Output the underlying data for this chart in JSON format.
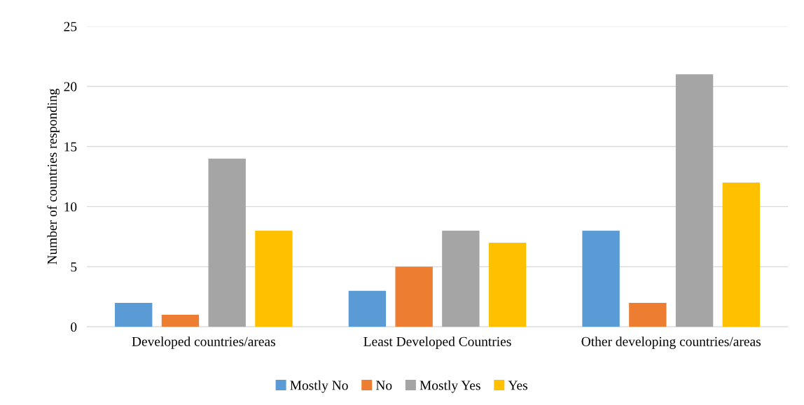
{
  "chart_data": {
    "type": "bar",
    "ylabel": "Number of countries responding",
    "categories": [
      "Developed countries/areas",
      "Least Developed Countries",
      "Other developing countries/areas"
    ],
    "series": [
      {
        "name": "Mostly No",
        "color": "#5b9bd5",
        "values": [
          2,
          3,
          8
        ]
      },
      {
        "name": "No",
        "color": "#ed7d31",
        "values": [
          1,
          5,
          2
        ]
      },
      {
        "name": "Mostly Yes",
        "color": "#a5a5a5",
        "values": [
          14,
          8,
          21
        ]
      },
      {
        "name": "Yes",
        "color": "#ffc000",
        "values": [
          8,
          7,
          12
        ]
      }
    ],
    "ylim": [
      0,
      25
    ],
    "yticks": [
      0,
      5,
      10,
      15,
      20,
      25
    ],
    "grid": "y",
    "legend": "bottom"
  }
}
